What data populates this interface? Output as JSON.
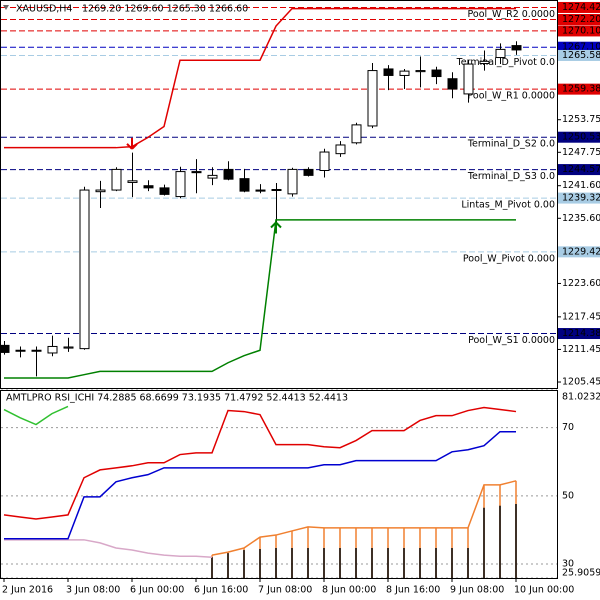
{
  "chart_data": [
    {
      "type": "candlestick",
      "title": "XAUUSD,H4",
      "subtitle": "1269.20 1269.60 1265.30 1266.60",
      "categories": [
        "2 Jun 2016",
        null,
        null,
        null,
        "3 Jun 08:00",
        null,
        null,
        null,
        "6 Jun 00:00",
        null,
        null,
        null,
        "6 Jun 16:00",
        null,
        null,
        null,
        "7 Jun 08:00",
        null,
        null,
        null,
        "8 Jun 00:00",
        null,
        null,
        null,
        "8 Jun 16:00",
        null,
        null,
        null,
        "9 Jun 08:00",
        null,
        null,
        null,
        "10 Jun 00:00"
      ],
      "open": [
        1212.2,
        1211.2,
        1211.2,
        1210.8,
        1211.7,
        1211.6,
        1240.5,
        1240.8,
        1242.2,
        1241.6,
        1241.2,
        1239.6,
        1244.2,
        1243.0,
        1244.6,
        1242.9,
        1240.8,
        1240.8,
        1240.1,
        1244.6,
        1244.4,
        1247.5,
        1249.5,
        1252.6,
        1263.1,
        1261.9,
        1262.6,
        1262.9,
        1261.3,
        1258.5,
        1264.1,
        1265.2,
        1267.4
      ],
      "high": [
        1213.0,
        1212.0,
        1212.0,
        1214.0,
        1213.6,
        1241.4,
        1242.5,
        1245.0,
        1247.7,
        1242.6,
        1241.8,
        1245.1,
        1246.5,
        1245.0,
        1246.1,
        1244.7,
        1241.9,
        1242.1,
        1244.9,
        1245.0,
        1248.4,
        1249.8,
        1253.2,
        1264.2,
        1263.8,
        1263.1,
        1265.4,
        1263.5,
        1262.5,
        1264.8,
        1266.5,
        1267.8,
        1268.2
      ],
      "low": [
        1210.5,
        1210.0,
        1206.5,
        1210.2,
        1211.0,
        1211.4,
        1237.5,
        1240.6,
        1239.5,
        1240.6,
        1239.8,
        1239.3,
        1240.2,
        1241.7,
        1242.6,
        1240.4,
        1240.2,
        1234.0,
        1239.6,
        1243.3,
        1243.1,
        1246.9,
        1249.2,
        1252.2,
        1259.2,
        1259.4,
        1259.7,
        1260.3,
        1257.7,
        1256.9,
        1262.8,
        1264.0,
        1265.7
      ],
      "close": [
        1210.9,
        1211.3,
        1211.3,
        1212.0,
        1211.9,
        1240.8,
        1240.8,
        1244.6,
        1242.5,
        1241.2,
        1240.0,
        1244.2,
        1244.0,
        1243.5,
        1242.8,
        1240.6,
        1240.6,
        1240.9,
        1244.6,
        1243.5,
        1247.8,
        1249.1,
        1252.8,
        1262.8,
        1261.9,
        1262.7,
        1262.8,
        1261.7,
        1259.4,
        1264.0,
        1264.5,
        1266.7,
        1266.6
      ],
      "series": [
        {
          "type": "line",
          "color": "#e00000",
          "values": [
            1248.6,
            1248.6,
            1248.6,
            1248.6,
            1248.6,
            1248.6,
            1248.6,
            1248.6,
            1248.8,
            1250.5,
            1252.5,
            1264.7,
            1264.7,
            1264.7,
            1264.7,
            1264.7,
            1264.7,
            1271.0,
            1274.2,
            1274.2,
            1274.2,
            1274.2,
            1274.2,
            1274.2,
            1274.2,
            1274.2,
            1274.2,
            1274.2,
            1274.2,
            1274.2,
            1274.2,
            1274.2,
            1274.2
          ]
        },
        {
          "type": "line",
          "color": "#008000",
          "values": [
            1206.2,
            1206.2,
            1206.2,
            1206.2,
            1206.2,
            1206.8,
            1207.4,
            1207.4,
            1207.4,
            1207.4,
            1207.4,
            1207.4,
            1207.4,
            1207.4,
            1209.0,
            1210.3,
            1211.3,
            1235.3,
            1235.3,
            1235.3,
            1235.3,
            1235.3,
            1235.3,
            1235.3,
            1235.3,
            1235.3,
            1235.3,
            1235.3,
            1235.3,
            1235.3,
            1235.3,
            1235.3,
            1235.3
          ]
        },
        {
          "type": "arrow-down",
          "color": "#e00000",
          "values": [
            null,
            null,
            null,
            null,
            null,
            null,
            null,
            null,
            1249.3,
            null,
            null,
            null,
            null,
            null,
            null,
            null,
            null,
            null,
            null,
            null,
            null,
            null,
            null,
            null,
            null,
            null,
            null,
            null,
            null,
            null,
            null,
            null,
            null
          ]
        },
        {
          "type": "arrow-up",
          "color": "#008000",
          "values": [
            null,
            null,
            null,
            null,
            null,
            null,
            null,
            null,
            null,
            null,
            null,
            null,
            null,
            null,
            null,
            null,
            null,
            1233.9,
            null,
            null,
            null,
            null,
            null,
            null,
            null,
            null,
            null,
            null,
            null,
            null,
            null,
            null,
            null
          ]
        }
      ],
      "levels": [
        {
          "value": 1274.42,
          "value_label": "1274.42",
          "color": "#e00000",
          "name": "Pool_W_R2  0.0000"
        },
        {
          "value": 1272.2,
          "value_label": "1272.20",
          "color": "#e00000"
        },
        {
          "value": 1270.1,
          "value_label": "1270.10",
          "color": "#e00000"
        },
        {
          "value": 1267.1,
          "value_label": "1267.10",
          "color": "#0000c0"
        },
        {
          "value": 1265.58,
          "value_label": "1265.58",
          "color": "#a8cce4",
          "name": "Terminal_D_Pivot  0.0"
        },
        {
          "value": 1259.38,
          "value_label": "1259.38",
          "color": "#e00000",
          "name": "Pool_W_R1  0.0000"
        },
        {
          "value": 1250.53,
          "value_label": "1250.53",
          "color": "#000080",
          "name": "Terminal_D_S2  0.0"
        },
        {
          "value": 1244.57,
          "value_label": "1244.57",
          "color": "#000080",
          "name": "Terminal_D_S3  0.0"
        },
        {
          "value": 1239.32,
          "value_label": "1239.32",
          "color": "#a8cce4",
          "name": "Lintas_M_Pivot  0.00"
        },
        {
          "value": 1229.42,
          "value_label": "1229.42",
          "color": "#a8cce4",
          "name": "Pool_W_Pivot  0.000"
        },
        {
          "value": 1214.38,
          "value_label": "1214.38",
          "color": "#000080",
          "name": "Pool_W_S1  0.0000"
        }
      ],
      "ylim": [
        1204.35,
        1275.61
      ],
      "yticks": [
        {
          "value": 1253.75,
          "label": "1253.75"
        },
        {
          "value": 1247.75,
          "label": "1247.75"
        },
        {
          "value": 1241.6,
          "label": "1241.60"
        },
        {
          "value": 1235.6,
          "label": "1235.60"
        },
        {
          "value": 1223.6,
          "label": "1223.60"
        },
        {
          "value": 1217.45,
          "label": "1217.45"
        },
        {
          "value": 1211.45,
          "label": "1211.45"
        },
        {
          "value": 1205.45,
          "label": "1205.45"
        }
      ]
    },
    {
      "type": "indicator",
      "title": "AMTLPRO RSI_ICHI 74.2885 68.6699 73.1935 71.4792 52.4413 52.4413",
      "series": [
        {
          "type": "bar",
          "color": "#f08030",
          "values": [
            null,
            null,
            null,
            null,
            null,
            null,
            null,
            null,
            null,
            null,
            null,
            null,
            null,
            32.6,
            33.5,
            34.7,
            37.9,
            38.5,
            39.7,
            40.9,
            40.6,
            40.6,
            40.6,
            40.6,
            40.6,
            40.6,
            40.6,
            40.6,
            40.6,
            40.6,
            53.2,
            53.2,
            54.4
          ]
        },
        {
          "type": "bar",
          "color": "#000000",
          "values": [
            null,
            null,
            null,
            null,
            null,
            null,
            null,
            null,
            null,
            null,
            null,
            null,
            null,
            32.0,
            33.2,
            34.1,
            34.4,
            34.7,
            34.7,
            34.7,
            34.7,
            34.7,
            34.7,
            34.7,
            34.7,
            34.7,
            34.7,
            34.7,
            34.7,
            34.7,
            46.5,
            47.1,
            47.6
          ]
        },
        {
          "type": "line",
          "color": "#d8a8c8",
          "values": [
            37.1,
            37.1,
            37.1,
            37.1,
            37.1,
            37.1,
            36.2,
            34.7,
            34.1,
            33.2,
            32.6,
            32.3,
            32.3,
            32.0,
            null,
            null,
            null,
            null,
            null,
            null,
            null,
            null,
            null,
            null,
            null,
            null,
            null,
            null,
            null,
            null,
            null,
            null,
            null
          ]
        },
        {
          "type": "line",
          "color": "#f08030",
          "values": [
            null,
            null,
            null,
            null,
            null,
            null,
            null,
            null,
            null,
            null,
            null,
            null,
            null,
            32.6,
            33.5,
            34.7,
            37.9,
            38.5,
            39.7,
            40.9,
            40.6,
            40.6,
            40.6,
            40.6,
            40.6,
            40.6,
            40.6,
            40.6,
            40.6,
            40.6,
            53.2,
            53.2,
            54.4
          ]
        },
        {
          "type": "line",
          "color": "#30c030",
          "values": [
            75.3,
            72.9,
            70.9,
            74.1,
            76.2,
            null,
            null,
            null,
            null,
            null,
            null,
            null,
            null,
            null,
            null,
            null,
            null,
            null,
            null,
            null,
            null,
            null,
            null,
            null,
            null,
            null,
            null,
            null,
            null,
            null,
            null,
            null,
            null
          ]
        },
        {
          "type": "line",
          "color": "#0000d0",
          "values": [
            37.4,
            37.4,
            37.4,
            37.4,
            37.4,
            49.7,
            49.7,
            54.1,
            55.3,
            56.2,
            58.2,
            58.2,
            58.2,
            58.2,
            58.2,
            58.2,
            58.2,
            58.2,
            58.2,
            58.2,
            59.1,
            59.1,
            60.3,
            60.3,
            60.3,
            60.3,
            60.3,
            60.3,
            62.9,
            63.5,
            64.7,
            68.8,
            68.8
          ]
        },
        {
          "type": "line",
          "color": "#e00000",
          "values": [
            44.4,
            43.8,
            43.2,
            43.8,
            44.4,
            55.3,
            57.6,
            58.2,
            58.8,
            59.7,
            59.7,
            62.1,
            62.6,
            62.6,
            75.0,
            74.7,
            73.8,
            65.0,
            65.0,
            65.0,
            64.4,
            64.1,
            66.2,
            69.1,
            69.1,
            69.1,
            72.1,
            73.5,
            73.5,
            75.0,
            75.9,
            75.3,
            74.7
          ]
        }
      ],
      "ylim": [
        25.9059,
        81.0232
      ],
      "yticks": [
        81.0232,
        70,
        50,
        30,
        25.9059
      ]
    }
  ]
}
